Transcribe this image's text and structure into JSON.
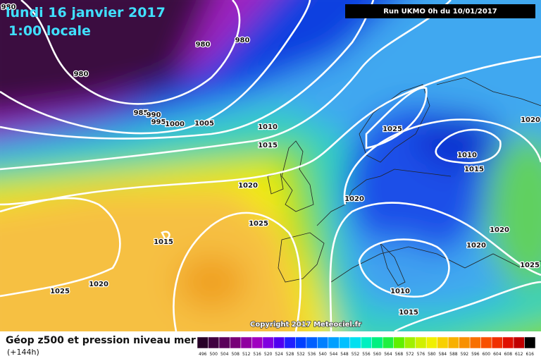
{
  "header": {
    "title": "lundi 16 janvier 2017",
    "subtitle": "1:00 locale",
    "run": "Run UKMO 0h du 10/01/2017"
  },
  "isobar_labels": [
    980,
    980,
    980,
    980,
    985,
    990,
    995,
    1000,
    1005,
    1010,
    1015,
    1020,
    1025,
    1015,
    1025,
    1020,
    1025,
    1010,
    1015,
    1020,
    1020,
    1020,
    1020,
    1025,
    1010,
    1015
  ],
  "copyright": "Copyright 2017 Meteociel.fr",
  "legend": {
    "title": "Géop z500 et pression niveau mer",
    "lead": "(+144h)",
    "values": [
      496,
      500,
      504,
      508,
      512,
      516,
      520,
      524,
      528,
      532,
      536,
      540,
      544,
      548,
      552,
      556,
      560,
      564,
      568,
      572,
      576,
      580,
      584,
      588,
      592,
      596,
      600,
      604,
      608,
      612,
      616
    ],
    "colors": [
      "#280028",
      "#400040",
      "#5a005a",
      "#780078",
      "#9000a0",
      "#a000c0",
      "#8000e0",
      "#5000f0",
      "#2020ff",
      "#0040ff",
      "#0060ff",
      "#0080ff",
      "#00a0ff",
      "#00c0ff",
      "#00e0f0",
      "#00f0c0",
      "#00f080",
      "#20f040",
      "#60f000",
      "#a0f000",
      "#d0f000",
      "#f0f000",
      "#f8d000",
      "#f8b000",
      "#f89000",
      "#f87000",
      "#f85000",
      "#f03000",
      "#e01000",
      "#c00000",
      "#000000"
    ]
  }
}
